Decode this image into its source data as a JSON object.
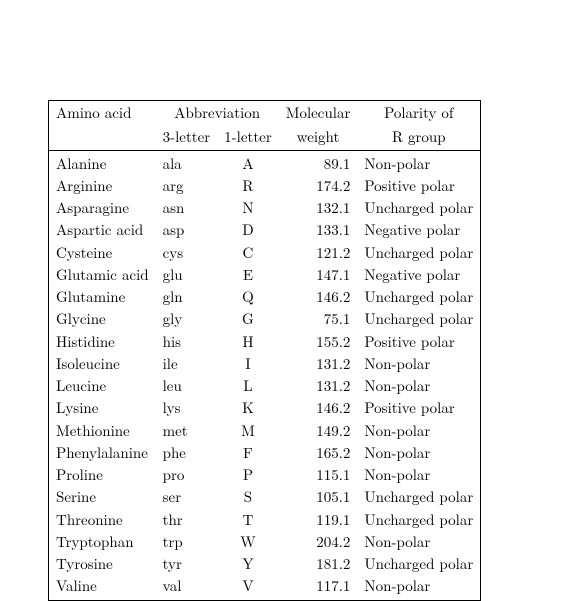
{
  "table": {
    "type": "table",
    "background_color": "#ffffff",
    "border_color": "#000000",
    "font_size_pt": 11,
    "text_color": "#000000",
    "columns": [
      {
        "header1": "Amino acid",
        "header2": "",
        "align": "left"
      },
      {
        "header1": "Abbreviation",
        "header2": "3-letter",
        "align": "left"
      },
      {
        "header1": "",
        "header2": "1-letter",
        "align": "center"
      },
      {
        "header1": "Molecular",
        "header2": "weight",
        "align": "right"
      },
      {
        "header1": "Polarity of",
        "header2": "R group",
        "align": "left"
      }
    ],
    "rows": [
      [
        "Alanine",
        "ala",
        "A",
        "89.1",
        "Non-polar"
      ],
      [
        "Arginine",
        "arg",
        "R",
        "174.2",
        "Positive polar"
      ],
      [
        "Asparagine",
        "asn",
        "N",
        "132.1",
        "Uncharged polar"
      ],
      [
        "Aspartic acid",
        "asp",
        "D",
        "133.1",
        "Negative polar"
      ],
      [
        "Cysteine",
        "cys",
        "C",
        "121.2",
        "Uncharged polar"
      ],
      [
        "Glutamic acid",
        "glu",
        "E",
        "147.1",
        "Negative polar"
      ],
      [
        "Glutamine",
        "gln",
        "Q",
        "146.2",
        "Uncharged polar"
      ],
      [
        "Glycine",
        "gly",
        "G",
        "75.1",
        "Uncharged polar"
      ],
      [
        "Histidine",
        "his",
        "H",
        "155.2",
        "Positive polar"
      ],
      [
        "Isoleucine",
        "ile",
        "I",
        "131.2",
        "Non-polar"
      ],
      [
        "Leucine",
        "leu",
        "L",
        "131.2",
        "Non-polar"
      ],
      [
        "Lysine",
        "lys",
        "K",
        "146.2",
        "Positive polar"
      ],
      [
        "Methionine",
        "met",
        "M",
        "149.2",
        "Non-polar"
      ],
      [
        "Phenylalanine",
        "phe",
        "F",
        "165.2",
        "Non-polar"
      ],
      [
        "Proline",
        "pro",
        "P",
        "115.1",
        "Non-polar"
      ],
      [
        "Serine",
        "ser",
        "S",
        "105.1",
        "Uncharged polar"
      ],
      [
        "Threonine",
        "thr",
        "T",
        "119.1",
        "Uncharged polar"
      ],
      [
        "Tryptophan",
        "trp",
        "W",
        "204.2",
        "Non-polar"
      ],
      [
        "Tyrosine",
        "tyr",
        "Y",
        "181.2",
        "Uncharged polar"
      ],
      [
        "Valine",
        "val",
        "V",
        "117.1",
        "Non-polar"
      ]
    ]
  }
}
